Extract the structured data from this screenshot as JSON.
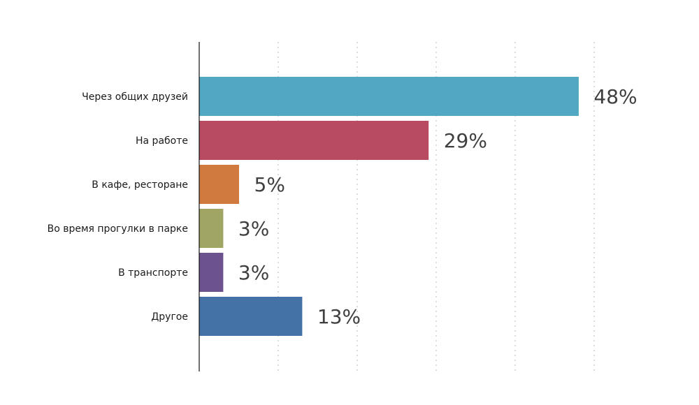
{
  "chart_data": {
    "type": "bar",
    "orientation": "horizontal",
    "title": "",
    "xlabel": "",
    "ylabel": "",
    "categories": [
      "Через общих друзей",
      "На работе",
      "В кафе, ресторане",
      "Во время прогулки в парке",
      "В транспорте",
      "Другое"
    ],
    "values": [
      48,
      29,
      5,
      3,
      3,
      13
    ],
    "value_labels": [
      "48%",
      "29%",
      "5%",
      "3%",
      "3%",
      "13%"
    ],
    "colors": [
      "#52a8c2",
      "#b84a62",
      "#d07a40",
      "#a0a564",
      "#6c528f",
      "#4471a6"
    ],
    "xlim": [
      0,
      50
    ],
    "grid_x": [
      10,
      20,
      30,
      40,
      50
    ],
    "grid": true,
    "legend": "none"
  }
}
